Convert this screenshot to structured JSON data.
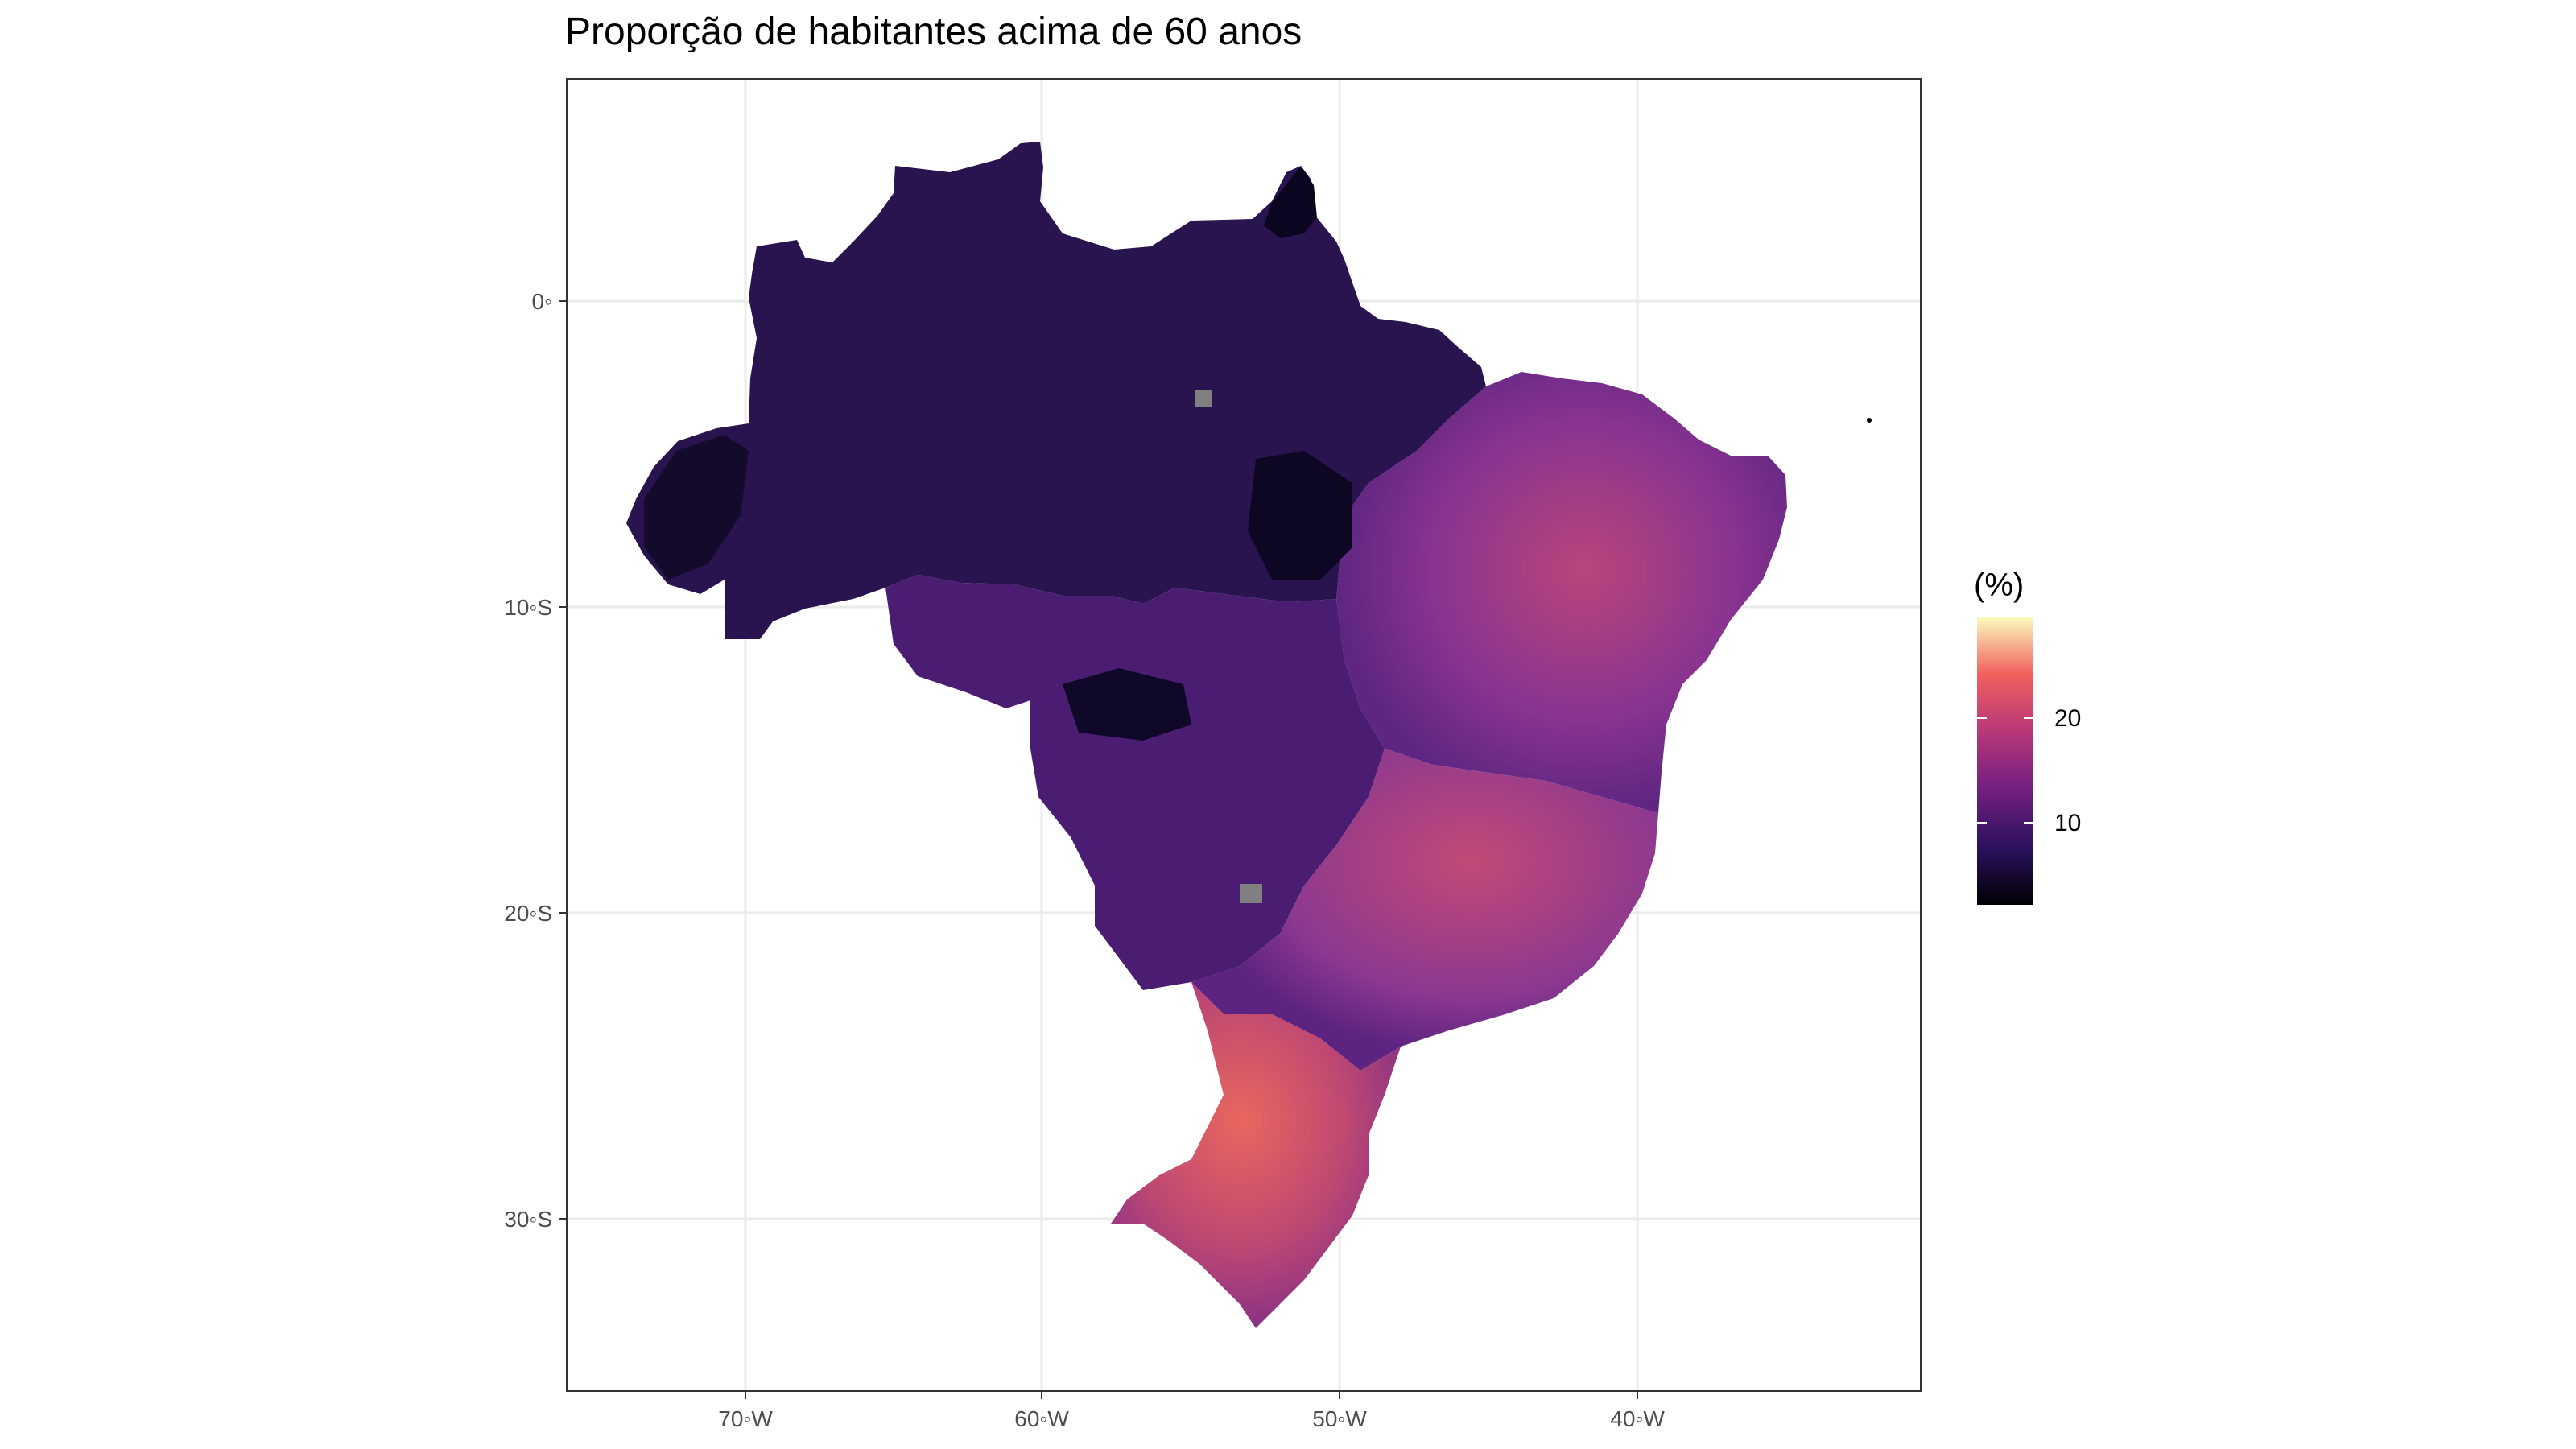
{
  "title": "Proporção de habitantes acima de 60 anos",
  "axes": {
    "y_ticks": [
      "0◦",
      "10◦S",
      "20◦S",
      "30◦S"
    ],
    "x_ticks": [
      "70◦W",
      "60◦W",
      "50◦W",
      "40◦W"
    ]
  },
  "legend": {
    "title": "(%)",
    "labels": [
      "20",
      "10"
    ],
    "colors": [
      "#000004",
      "#3b0f70",
      "#8c2981",
      "#de4968",
      "#fe9f6d",
      "#fcfdbf"
    ]
  },
  "colors": {
    "panel_border": "#333333",
    "grid": "#ebebeb",
    "no_data": "#808080",
    "north_fill": "#2a1450",
    "northeast_fill": "#6a2a86",
    "southeast_fill": "#8e3a8c",
    "south_fill": "#c24a72"
  }
}
